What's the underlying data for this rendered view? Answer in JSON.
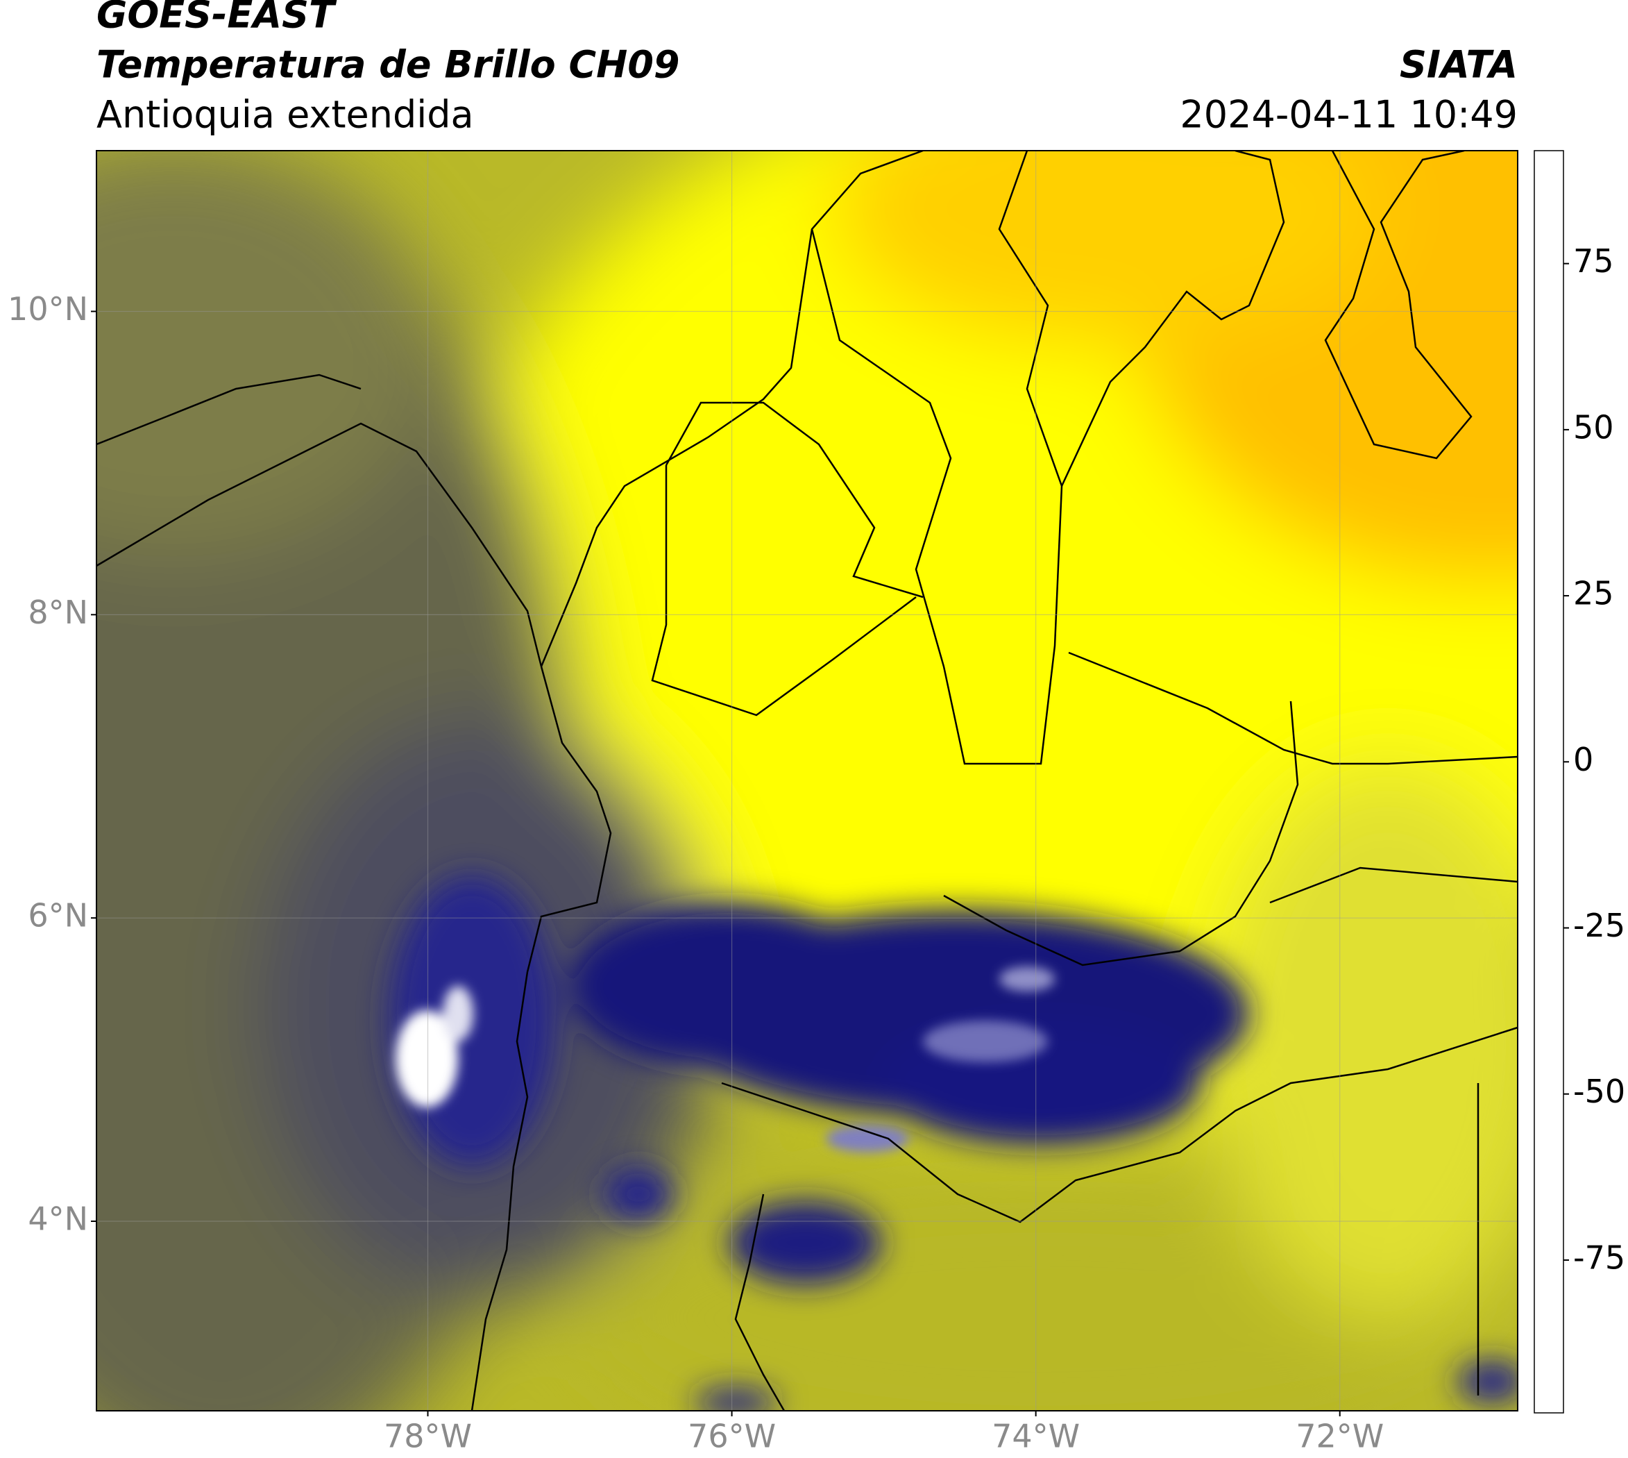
{
  "header": {
    "satellite": "GOES-EAST",
    "product": "Temperatura de Brillo CH09",
    "region": "Antioquia extendida",
    "source": "SIATA",
    "datetime": "2024-04-11 10:49"
  },
  "map": {
    "xlim": [
      -80.18,
      -70.83
    ],
    "ylim": [
      2.75,
      11.06
    ],
    "xticks": [
      {
        "value": -78,
        "label": "78°W"
      },
      {
        "value": -76,
        "label": "76°W"
      },
      {
        "value": -74,
        "label": "74°W"
      },
      {
        "value": -72,
        "label": "72°W"
      }
    ],
    "yticks": [
      {
        "value": 4,
        "label": "4°N"
      },
      {
        "value": 6,
        "label": "6°N"
      },
      {
        "value": 8,
        "label": "8°N"
      },
      {
        "value": 10,
        "label": "10°N"
      }
    ],
    "grid": true
  },
  "colorbar": {
    "lim": [
      -98,
      92
    ],
    "ticks": [
      -75,
      -50,
      -25,
      0,
      25,
      50,
      75
    ],
    "stops": [
      {
        "value": -98,
        "color": "#ffffff"
      },
      {
        "value": -93,
        "color": "#ffffff"
      },
      {
        "value": -92.9,
        "color": "#00eedd"
      },
      {
        "value": -82,
        "color": "#20b890"
      },
      {
        "value": -72,
        "color": "#2e7d32"
      },
      {
        "value": -62,
        "color": "#5fa25f"
      },
      {
        "value": -55,
        "color": "#eef2ee"
      },
      {
        "value": -50,
        "color": "#ffffff"
      },
      {
        "value": -44,
        "color": "#a8a8d4"
      },
      {
        "value": -37,
        "color": "#4848a0"
      },
      {
        "value": -30,
        "color": "#000080"
      },
      {
        "value": -25,
        "color": "#3c3c5c"
      },
      {
        "value": -20,
        "color": "#7a7a3c"
      },
      {
        "value": -15,
        "color": "#c8c820"
      },
      {
        "value": -10,
        "color": "#ffff00"
      },
      {
        "value": -4,
        "color": "#ffd000"
      },
      {
        "value": 1,
        "color": "#ff9000"
      },
      {
        "value": 5,
        "color": "#ff4000"
      },
      {
        "value": 8,
        "color": "#ff0000"
      },
      {
        "value": 8.1,
        "color": "#000000"
      },
      {
        "value": 92,
        "color": "#000000"
      }
    ]
  }
}
